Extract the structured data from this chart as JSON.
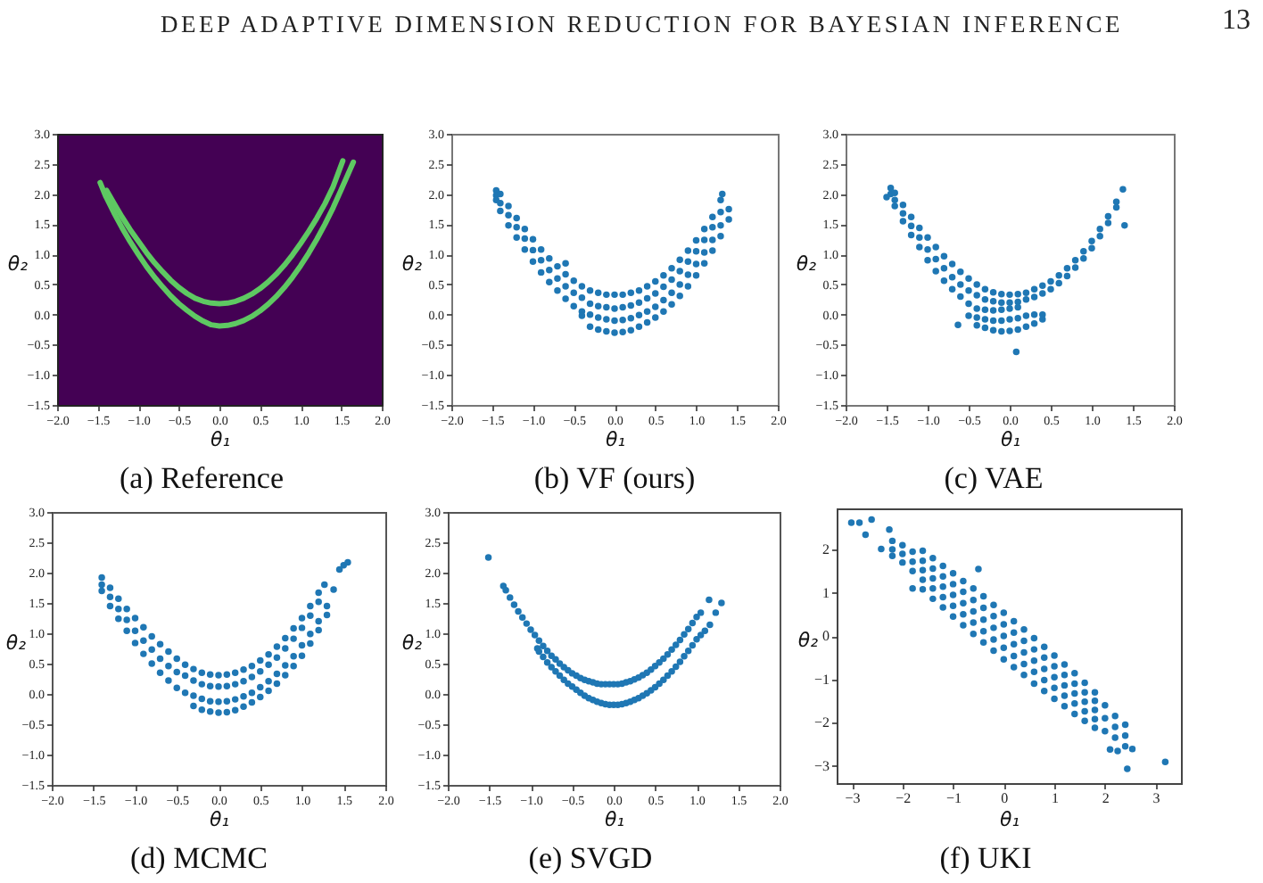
{
  "chart_data": [
    {
      "type": "line",
      "title": "(a) Reference",
      "xlabel": "θ₁",
      "ylabel": "θ₂",
      "annotations": [
        "DEEP ADAPTIVE DIMENSION REDUCTION FOR BAYESIAN INFERENCE",
        "13"
      ],
      "series": [
        {
          "color": "#5ec962",
          "x": [
            -1.39,
            -1.3,
            -1.2,
            -1.1,
            -1,
            -0.9,
            -0.8,
            -0.7,
            -0.6,
            -0.5,
            -0.4,
            -0.3,
            -0.2,
            -0.1,
            0,
            0.1,
            0.2,
            0.3,
            0.4,
            0.5,
            0.6,
            0.7,
            0.8,
            0.9,
            1,
            1.1,
            1.2,
            1.3,
            1.4,
            1.52
          ],
          "values": [
            2.06,
            1.85,
            1.62,
            1.41,
            1.22,
            1.03,
            0.86,
            0.71,
            0.57,
            0.45,
            0.35,
            0.27,
            0.22,
            0.19,
            0.18,
            0.19,
            0.22,
            0.27,
            0.34,
            0.43,
            0.54,
            0.67,
            0.82,
            0.99,
            1.18,
            1.38,
            1.6,
            1.84,
            2.12,
            2.55
          ]
        },
        {
          "color": "#5ec962",
          "x": [
            -1.47,
            -1.4,
            -1.3,
            -1.2,
            -1.1,
            -1,
            -0.9,
            -0.8,
            -0.7,
            -0.6,
            -0.5,
            -0.4,
            -0.3,
            -0.2,
            -0.1,
            0,
            0.1,
            0.2,
            0.3,
            0.4,
            0.5,
            0.6,
            0.7,
            0.8,
            0.9,
            1,
            1.1,
            1.2,
            1.3,
            1.4,
            1.5,
            1.65
          ],
          "values": [
            2.19,
            1.96,
            1.69,
            1.44,
            1.21,
            1,
            0.8,
            0.62,
            0.46,
            0.31,
            0.18,
            0.07,
            -0.03,
            -0.11,
            -0.17,
            -0.19,
            -0.18,
            -0.15,
            -0.1,
            -0.03,
            0.06,
            0.17,
            0.3,
            0.45,
            0.62,
            0.81,
            1.02,
            1.25,
            1.5,
            1.77,
            2.07,
            2.53
          ]
        }
      ],
      "xlim": [
        -2,
        2
      ],
      "ylim": [
        -1.5,
        3
      ],
      "xticks": [
        {
          "value": -2,
          "label": "−2.0"
        },
        -1.5,
        {
          "value": -1,
          "label": "−1.0"
        },
        -0.5,
        {
          "value": 0,
          "label": "0.0"
        },
        0.5,
        {
          "value": 1,
          "label": "1.0"
        },
        1.5,
        {
          "value": 2,
          "label": "2.0"
        }
      ],
      "yticks": [
        -1.5,
        {
          "value": -1,
          "label": "−1.0"
        },
        -0.5,
        {
          "value": 0,
          "label": "0.0"
        },
        0.5,
        {
          "value": 1,
          "label": "1.0"
        },
        1.5,
        {
          "value": 2,
          "label": "2.0"
        },
        2.5,
        {
          "value": 3,
          "label": "3.0"
        }
      ]
    },
    {
      "type": "scatter",
      "title": "(b) VF (ours)",
      "xlabel": "θ₁",
      "ylabel": "θ₂",
      "color": "#1f77b4",
      "marker": "circle",
      "x": [
        -1.45,
        -1.45,
        -1.45,
        -1.4,
        -1.4,
        -1.4,
        -1.3,
        -1.3,
        -1.3,
        -1.2,
        -1.2,
        -1.2,
        -1.1,
        -1.1,
        -1.1,
        -1,
        -1,
        -1,
        -0.9,
        -0.9,
        -0.9,
        -0.8,
        -0.8,
        -0.8,
        -0.7,
        -0.7,
        -0.7,
        -0.6,
        -0.6,
        -0.6,
        -0.5,
        -0.5,
        -0.5,
        -0.4,
        -0.4,
        -0.4,
        -0.3,
        -0.3,
        -0.2,
        -0.2,
        -0.1,
        -0.1,
        0,
        0,
        0.1,
        0.1,
        0.2,
        0.2,
        0.3,
        0.3,
        0.4,
        0.4,
        0.5,
        0.5,
        0.6,
        0.6,
        0.7,
        0.7,
        0.8,
        0.8,
        0.9,
        0.9,
        1,
        1,
        1.1,
        1.1,
        1.2,
        1.2,
        1.3,
        1.3,
        1.32,
        -0.4,
        -0.3,
        -0.3,
        -0.2,
        -0.2,
        -0.1,
        -0.1,
        0,
        0,
        0.1,
        0.1,
        0.2,
        0.2,
        0.3,
        0.3,
        0.4,
        0.4,
        0.5,
        0.5,
        0.6,
        0.6,
        0.7,
        0.7,
        0.8,
        0.8,
        0.9,
        0.9,
        1,
        1,
        1.1,
        1.1,
        1.2,
        1.2,
        1.3,
        1.3,
        1.4,
        1.4,
        -0.6
      ],
      "values": [
        2.06,
        1.98,
        1.9,
        2,
        1.85,
        1.72,
        1.8,
        1.65,
        1.48,
        1.6,
        1.45,
        1.28,
        1.42,
        1.26,
        1.08,
        1.25,
        1.07,
        0.88,
        1.08,
        0.9,
        0.7,
        0.93,
        0.74,
        0.54,
        0.8,
        0.6,
        0.4,
        0.67,
        0.47,
        0.26,
        0.56,
        0.36,
        0.14,
        0.47,
        0.28,
        0.05,
        0.4,
        0.18,
        0.36,
        0.14,
        0.33,
        0.12,
        0.33,
        0.1,
        0.33,
        0.12,
        0.36,
        0.15,
        0.4,
        0.2,
        0.47,
        0.27,
        0.55,
        0.35,
        0.65,
        0.46,
        0.77,
        0.58,
        0.91,
        0.72,
        1.06,
        0.88,
        1.23,
        1.05,
        1.42,
        1.24,
        1.62,
        1.45,
        1.9,
        1.7,
        2,
        -0.02,
        0,
        -0.2,
        -0.05,
        -0.25,
        -0.08,
        -0.28,
        -0.1,
        -0.3,
        -0.09,
        -0.29,
        -0.06,
        -0.26,
        -0.01,
        -0.2,
        0.05,
        -0.13,
        0.13,
        -0.05,
        0.24,
        0.05,
        0.36,
        0.17,
        0.5,
        0.31,
        0.66,
        0.47,
        0.84,
        0.65,
        1.03,
        0.85,
        1.24,
        1.06,
        1.48,
        1.3,
        1.75,
        1.58,
        0.85
      ],
      "xlim": [
        -2,
        2
      ],
      "ylim": [
        -1.5,
        3
      ],
      "xticks": [
        {
          "value": -2,
          "label": "−2.0"
        },
        -1.5,
        {
          "value": -1,
          "label": "−1.0"
        },
        -0.5,
        {
          "value": 0,
          "label": "0.0"
        },
        0.5,
        {
          "value": 1,
          "label": "1.0"
        },
        1.5,
        {
          "value": 2,
          "label": "2.0"
        }
      ],
      "yticks": [
        -1.5,
        {
          "value": -1,
          "label": "−1.0"
        },
        -0.5,
        {
          "value": 0,
          "label": "0.0"
        },
        0.5,
        {
          "value": 1,
          "label": "1.0"
        },
        1.5,
        {
          "value": 2,
          "label": "2.0"
        },
        2.5,
        {
          "value": 3,
          "label": "3.0"
        }
      ]
    },
    {
      "type": "scatter",
      "title": "(c) VAE",
      "xlabel": "θ₁",
      "ylabel": "θ₂",
      "color": "#1f77b4",
      "marker": "circle",
      "x": [
        -1.45,
        -1.45,
        -1.4,
        -1.4,
        -1.4,
        -1.3,
        -1.3,
        -1.3,
        -1.2,
        -1.2,
        -1.2,
        -1.1,
        -1.1,
        -1.1,
        -1,
        -1,
        -1,
        -0.9,
        -0.9,
        -0.9,
        -0.8,
        -0.8,
        -0.8,
        -0.7,
        -0.7,
        -0.7,
        -0.6,
        -0.6,
        -0.6,
        -0.5,
        -0.5,
        -0.5,
        -0.4,
        -0.4,
        -0.4,
        -0.3,
        -0.3,
        -0.3,
        -0.2,
        -0.2,
        -0.2,
        -0.1,
        -0.1,
        -0.1,
        0,
        0,
        0,
        0.1,
        0.1,
        0.1,
        0.2,
        0.2,
        0.3,
        0.3,
        0.4,
        0.4,
        0.5,
        0.5,
        0.6,
        0.6,
        0.7,
        0.7,
        0.8,
        0.8,
        0.9,
        0.9,
        1,
        1,
        1.1,
        1.1,
        1.2,
        1.2,
        1.3,
        1.3,
        1.38,
        -0.5,
        -0.4,
        -0.4,
        -0.3,
        -0.3,
        -0.2,
        -0.2,
        -0.1,
        -0.1,
        0,
        0,
        0.1,
        0.1,
        0.2,
        0.2,
        0.3,
        0.3,
        0.4,
        0.4,
        -1.5,
        1.4,
        0.08,
        -0.63
      ],
      "values": [
        2.1,
        2,
        2.02,
        1.9,
        1.8,
        1.82,
        1.68,
        1.55,
        1.62,
        1.47,
        1.32,
        1.44,
        1.28,
        1.12,
        1.28,
        1.08,
        0.9,
        1.12,
        0.92,
        0.72,
        0.97,
        0.77,
        0.56,
        0.84,
        0.62,
        0.42,
        0.71,
        0.5,
        0.3,
        0.6,
        0.4,
        0.18,
        0.5,
        0.32,
        0.1,
        0.42,
        0.25,
        0.08,
        0.37,
        0.22,
        0.07,
        0.34,
        0.2,
        0.08,
        0.33,
        0.2,
        0.1,
        0.34,
        0.21,
        0.12,
        0.36,
        0.25,
        0.42,
        0.29,
        0.48,
        0.35,
        0.55,
        0.42,
        0.65,
        0.52,
        0.77,
        0.64,
        0.9,
        0.78,
        1.05,
        0.93,
        1.22,
        1.1,
        1.42,
        1.3,
        1.63,
        1.52,
        1.87,
        1.78,
        2.08,
        -0.02,
        -0.05,
        -0.18,
        -0.08,
        -0.22,
        -0.1,
        -0.26,
        -0.1,
        -0.28,
        -0.08,
        -0.27,
        -0.06,
        -0.25,
        -0.02,
        -0.2,
        0,
        -0.15,
        0,
        -0.08,
        1.95,
        1.48,
        -0.62,
        -0.17
      ],
      "xlim": [
        -2,
        2
      ],
      "ylim": [
        -1.5,
        3
      ],
      "xticks": [
        {
          "value": -2,
          "label": "−2.0"
        },
        -1.5,
        {
          "value": -1,
          "label": "−1.0"
        },
        -0.5,
        {
          "value": 0,
          "label": "0.0"
        },
        0.5,
        {
          "value": 1,
          "label": "1.0"
        },
        1.5,
        {
          "value": 2,
          "label": "2.0"
        }
      ],
      "yticks": [
        -1.5,
        {
          "value": -1,
          "label": "−1.0"
        },
        -0.5,
        {
          "value": 0,
          "label": "0.0"
        },
        0.5,
        {
          "value": 1,
          "label": "1.0"
        },
        1.5,
        {
          "value": 2,
          "label": "2.0"
        },
        2.5,
        {
          "value": 3,
          "label": "3.0"
        }
      ]
    },
    {
      "type": "scatter",
      "title": "(d) MCMC",
      "xlabel": "θ₁",
      "ylabel": "θ₂",
      "color": "#1f77b4",
      "marker": "circle",
      "x": [
        -1.4,
        -1.4,
        -1.4,
        -1.3,
        -1.3,
        -1.3,
        -1.2,
        -1.2,
        -1.2,
        -1.1,
        -1.1,
        -1.1,
        -1,
        -1,
        -1,
        -0.9,
        -0.9,
        -0.9,
        -0.8,
        -0.8,
        -0.8,
        -0.7,
        -0.7,
        -0.7,
        -0.6,
        -0.6,
        -0.6,
        -0.5,
        -0.5,
        -0.5,
        -0.4,
        -0.4,
        -0.4,
        -0.3,
        -0.3,
        -0.2,
        -0.2,
        -0.1,
        -0.1,
        0,
        0,
        0.1,
        0.1,
        0.2,
        0.2,
        0.3,
        0.3,
        0.4,
        0.4,
        0.5,
        0.5,
        0.6,
        0.6,
        0.7,
        0.7,
        0.8,
        0.8,
        0.9,
        0.9,
        1,
        1,
        1.1,
        1.1,
        1.2,
        1.2,
        1.27,
        1.45,
        1.5,
        1.55,
        -0.3,
        -0.3,
        -0.2,
        -0.2,
        -0.1,
        -0.1,
        0,
        0,
        0.1,
        0.1,
        0.2,
        0.2,
        0.3,
        0.3,
        0.4,
        0.4,
        0.5,
        0.5,
        0.6,
        0.6,
        0.7,
        0.7,
        0.8,
        0.8,
        0.9,
        0.9,
        1,
        1,
        1.1,
        1.1,
        1.2,
        1.2,
        1.3,
        1.3,
        1.38
      ],
      "values": [
        1.92,
        1.8,
        1.7,
        1.75,
        1.6,
        1.45,
        1.57,
        1.4,
        1.24,
        1.4,
        1.22,
        1.04,
        1.25,
        1.04,
        0.84,
        1.1,
        0.88,
        0.66,
        0.95,
        0.73,
        0.5,
        0.82,
        0.58,
        0.35,
        0.7,
        0.46,
        0.22,
        0.58,
        0.36,
        0.1,
        0.48,
        0.3,
        0.02,
        0.41,
        0.22,
        0.35,
        0.16,
        0.32,
        0.13,
        0.31,
        0.12,
        0.32,
        0.13,
        0.35,
        0.16,
        0.4,
        0.21,
        0.46,
        0.28,
        0.55,
        0.37,
        0.65,
        0.48,
        0.78,
        0.6,
        0.92,
        0.75,
        1.08,
        0.91,
        1.25,
        1.09,
        1.45,
        1.29,
        1.67,
        1.52,
        1.8,
        2.05,
        2.12,
        2.17,
        -0.03,
        -0.2,
        -0.08,
        -0.26,
        -0.12,
        -0.29,
        -0.13,
        -0.31,
        -0.12,
        -0.3,
        -0.09,
        -0.27,
        -0.04,
        -0.21,
        0.02,
        -0.14,
        0.11,
        -0.05,
        0.21,
        0.05,
        0.33,
        0.17,
        0.47,
        0.31,
        0.62,
        0.46,
        0.8,
        0.63,
        0.99,
        0.83,
        1.2,
        1.05,
        1.45,
        1.3,
        1.72
      ],
      "xlim": [
        -2,
        2
      ],
      "ylim": [
        -1.5,
        3
      ],
      "xticks": [
        {
          "value": -2,
          "label": "−2.0"
        },
        -1.5,
        {
          "value": -1,
          "label": "−1.0"
        },
        -0.5,
        {
          "value": 0,
          "label": "0.0"
        },
        0.5,
        {
          "value": 1,
          "label": "1.0"
        },
        1.5,
        {
          "value": 2,
          "label": "2.0"
        }
      ],
      "yticks": [
        -1.5,
        {
          "value": -1,
          "label": "−1.0"
        },
        -0.5,
        {
          "value": 0,
          "label": "0.0"
        },
        0.5,
        {
          "value": 1,
          "label": "1.0"
        },
        1.5,
        {
          "value": 2,
          "label": "2.0"
        },
        2.5,
        {
          "value": 3,
          "label": "3.0"
        }
      ]
    },
    {
      "type": "scatter",
      "title": "(e) SVGD",
      "xlabel": "θ₁",
      "ylabel": "θ₂",
      "color": "#1f77b4",
      "marker": "circle",
      "x": [
        -1.33,
        -1.3,
        -1.25,
        -1.2,
        -1.15,
        -1.1,
        -1.05,
        -1,
        -0.95,
        -0.9,
        -0.85,
        -0.8,
        -0.75,
        -0.7,
        -0.65,
        -0.6,
        -0.55,
        -0.5,
        -0.45,
        -0.4,
        -0.35,
        -0.3,
        -0.25,
        -0.2,
        -0.15,
        -0.1,
        -0.05,
        0,
        0.05,
        0.1,
        0.15,
        0.2,
        0.25,
        0.3,
        0.35,
        0.4,
        0.45,
        0.5,
        0.55,
        0.6,
        0.65,
        0.7,
        0.75,
        0.8,
        0.85,
        0.9,
        0.95,
        1,
        1.05,
        -0.92,
        -0.9,
        -0.85,
        -0.8,
        -0.75,
        -0.7,
        -0.65,
        -0.6,
        -0.55,
        -0.5,
        -0.45,
        -0.4,
        -0.35,
        -0.3,
        -0.25,
        -0.2,
        -0.15,
        -0.1,
        -0.05,
        0,
        0.05,
        0.1,
        0.15,
        0.2,
        0.25,
        0.3,
        0.35,
        0.4,
        0.45,
        0.5,
        0.55,
        0.6,
        0.65,
        0.7,
        0.75,
        0.8,
        0.85,
        0.9,
        0.95,
        1,
        1.05,
        1.1,
        -1.51,
        1.15,
        1.3,
        1.23,
        1.16
      ],
      "values": [
        1.78,
        1.71,
        1.59,
        1.47,
        1.36,
        1.26,
        1.16,
        1.06,
        0.97,
        0.88,
        0.79,
        0.71,
        0.63,
        0.57,
        0.5,
        0.44,
        0.39,
        0.34,
        0.3,
        0.26,
        0.23,
        0.21,
        0.19,
        0.17,
        0.16,
        0.16,
        0.16,
        0.16,
        0.16,
        0.17,
        0.19,
        0.21,
        0.24,
        0.27,
        0.31,
        0.35,
        0.4,
        0.46,
        0.52,
        0.58,
        0.65,
        0.73,
        0.81,
        0.89,
        0.98,
        1.07,
        1.17,
        1.27,
        1.34,
        0.75,
        0.7,
        0.61,
        0.52,
        0.44,
        0.37,
        0.3,
        0.23,
        0.17,
        0.12,
        0.07,
        0.02,
        -0.03,
        -0.07,
        -0.1,
        -0.13,
        -0.15,
        -0.17,
        -0.18,
        -0.18,
        -0.18,
        -0.17,
        -0.15,
        -0.13,
        -0.1,
        -0.07,
        -0.03,
        0.01,
        0.06,
        0.11,
        0.17,
        0.23,
        0.3,
        0.37,
        0.45,
        0.53,
        0.62,
        0.71,
        0.8,
        0.9,
        0.97,
        1.04,
        2.25,
        1.55,
        1.5,
        1.34,
        1.14
      ],
      "xlim": [
        -2,
        2
      ],
      "ylim": [
        -1.5,
        3
      ],
      "xticks": [
        {
          "value": -2,
          "label": "−2.0"
        },
        -1.5,
        {
          "value": -1,
          "label": "−1.0"
        },
        -0.5,
        {
          "value": 0,
          "label": "0.0"
        },
        0.5,
        {
          "value": 1,
          "label": "1.0"
        },
        1.5,
        {
          "value": 2,
          "label": "2.0"
        }
      ],
      "yticks": [
        -1.5,
        {
          "value": -1,
          "label": "−1.0"
        },
        -0.5,
        {
          "value": 0,
          "label": "0.0"
        },
        0.5,
        {
          "value": 1,
          "label": "1.0"
        },
        1.5,
        {
          "value": 2,
          "label": "2.0"
        },
        2.5,
        {
          "value": 3,
          "label": "3.0"
        }
      ]
    },
    {
      "type": "scatter",
      "title": "(f) UKI",
      "xlabel": "θ₁",
      "ylabel": "θ₂",
      "color": "#1f77b4",
      "marker": "circle",
      "x": [
        -2.2,
        -2.2,
        -2.2,
        -2,
        -2,
        -2,
        -1.8,
        -1.8,
        -1.8,
        -1.6,
        -1.6,
        -1.6,
        -1.6,
        -1.6,
        -1.4,
        -1.4,
        -1.4,
        -1.4,
        -1.4,
        -1.2,
        -1.2,
        -1.2,
        -1.2,
        -1.2,
        -1,
        -1,
        -1,
        -1,
        -1,
        -0.8,
        -0.8,
        -0.8,
        -0.8,
        -0.8,
        -0.6,
        -0.6,
        -0.6,
        -0.6,
        -0.6,
        -0.4,
        -0.4,
        -0.4,
        -0.4,
        -0.4,
        -0.2,
        -0.2,
        -0.2,
        -0.2,
        -0.2,
        0,
        0,
        0,
        0,
        0,
        0.2,
        0.2,
        0.2,
        0.2,
        0.2,
        0.4,
        0.4,
        0.4,
        0.4,
        0.4,
        0.6,
        0.6,
        0.6,
        0.6,
        0.6,
        0.8,
        0.8,
        0.8,
        0.8,
        0.8,
        1,
        1,
        1,
        1,
        1,
        1.2,
        1.2,
        1.2,
        1.2,
        1.2,
        1.4,
        1.4,
        1.4,
        1.4,
        1.4,
        1.6,
        1.6,
        1.6,
        1.6,
        1.6,
        1.8,
        1.8,
        1.8,
        1.8,
        1.8,
        2,
        2,
        2,
        2.2,
        2.2,
        2.2,
        2.4,
        2.4,
        2.4,
        -3.01,
        -2.85,
        -2.61,
        -2.73,
        -2.26,
        -2.42,
        2.1,
        2.25,
        2.54,
        3.19,
        -0.5,
        -1.8,
        2.44
      ],
      "values": [
        2.2,
        2,
        1.85,
        2.1,
        1.9,
        1.7,
        1.95,
        1.72,
        1.5,
        1.97,
        1.74,
        1.52,
        1.3,
        1.08,
        1.8,
        1.56,
        1.33,
        1.1,
        0.86,
        1.62,
        1.38,
        1.14,
        0.9,
        0.66,
        1.45,
        1.2,
        0.95,
        0.7,
        0.45,
        1.27,
        1.02,
        0.76,
        0.5,
        0.25,
        1.1,
        0.83,
        0.57,
        0.31,
        0.05,
        0.92,
        0.65,
        0.38,
        0.11,
        -0.15,
        0.72,
        0.46,
        0.19,
        -0.08,
        -0.34,
        0.54,
        0.27,
        0,
        -0.27,
        -0.54,
        0.34,
        0.08,
        -0.19,
        -0.46,
        -0.72,
        0.15,
        -0.11,
        -0.38,
        -0.65,
        -0.9,
        -0.05,
        -0.31,
        -0.57,
        -0.83,
        -1.1,
        -0.25,
        -0.5,
        -0.76,
        -1.02,
        -1.27,
        -0.45,
        -0.7,
        -0.95,
        -1.2,
        -1.45,
        -0.66,
        -0.9,
        -1.14,
        -1.38,
        -1.62,
        -0.86,
        -1.1,
        -1.33,
        -1.56,
        -1.8,
        -1.08,
        -1.3,
        -1.52,
        -1.74,
        -1.96,
        -1.3,
        -1.5,
        -1.71,
        -1.92,
        -2.12,
        -1.6,
        -1.9,
        -2.2,
        -1.85,
        -2.1,
        -2.35,
        -2.05,
        -2.3,
        -2.55,
        2.62,
        2.62,
        2.69,
        2.34,
        2.46,
        2.01,
        -2.62,
        -2.66,
        -2.61,
        -2.91,
        1.55,
        1.1,
        -3.07
      ],
      "xlim": [
        -3.3,
        3.5
      ],
      "ylim": [
        -3.4,
        2.95
      ],
      "xticks": [
        -3,
        -2,
        -1,
        0,
        1,
        2,
        3
      ],
      "yticks": [
        -3,
        -2,
        -1,
        0,
        1,
        2
      ]
    }
  ]
}
